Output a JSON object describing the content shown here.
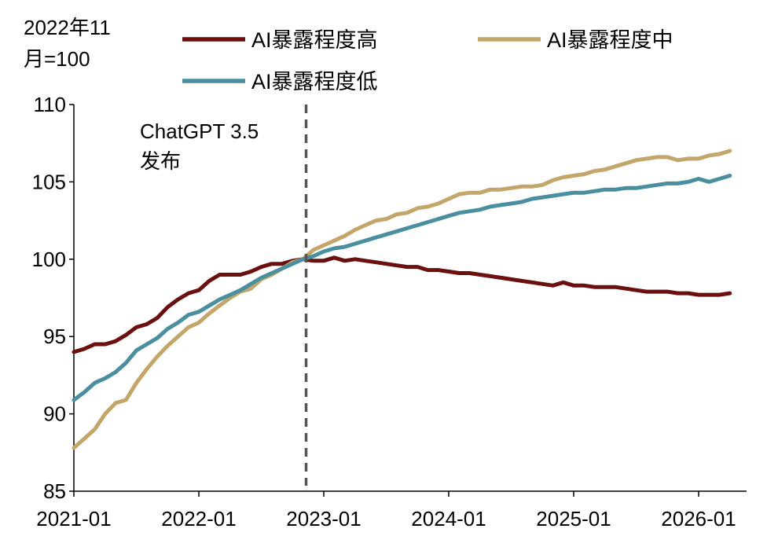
{
  "chart_data": {
    "type": "line",
    "title": "",
    "xlabel": "",
    "ylabel": "",
    "unit_label_line1": "2022年11",
    "unit_label_line2": "月=100",
    "ylim": [
      85,
      110
    ],
    "yticks": [
      85,
      90,
      95,
      100,
      105,
      110
    ],
    "xlim": [
      "2021-01",
      "2026-04"
    ],
    "xticks": [
      "2021-01",
      "2022-01",
      "2023-01",
      "2024-01",
      "2025-01",
      "2026-01"
    ],
    "grid": false,
    "legend_position": "top",
    "annotation": {
      "line1": "ChatGPT 3.5",
      "line2": "发布",
      "x": "2022-11",
      "style": "dashed"
    },
    "series": [
      {
        "name": "AI暴露程度高",
        "color": "#6b0f0f",
        "x": [
          "2021-01",
          "2021-02",
          "2021-03",
          "2021-04",
          "2021-05",
          "2021-06",
          "2021-07",
          "2021-08",
          "2021-09",
          "2021-10",
          "2021-11",
          "2021-12",
          "2022-01",
          "2022-02",
          "2022-03",
          "2022-04",
          "2022-05",
          "2022-06",
          "2022-07",
          "2022-08",
          "2022-09",
          "2022-10",
          "2022-11",
          "2022-12",
          "2023-01",
          "2023-02",
          "2023-03",
          "2023-04",
          "2023-05",
          "2023-06",
          "2023-07",
          "2023-08",
          "2023-09",
          "2023-10",
          "2023-11",
          "2023-12",
          "2024-01",
          "2024-02",
          "2024-03",
          "2024-04",
          "2024-05",
          "2024-06",
          "2024-07",
          "2024-08",
          "2024-09",
          "2024-10",
          "2024-11",
          "2024-12",
          "2025-01",
          "2025-02",
          "2025-03",
          "2025-04",
          "2025-05",
          "2025-06",
          "2025-07",
          "2025-08",
          "2025-09",
          "2025-10",
          "2025-11",
          "2025-12",
          "2026-01",
          "2026-02",
          "2026-03",
          "2026-04"
        ],
        "values": [
          94.0,
          94.2,
          94.5,
          94.5,
          94.7,
          95.1,
          95.6,
          95.8,
          96.2,
          96.9,
          97.4,
          97.8,
          98.0,
          98.6,
          99.0,
          99.0,
          99.0,
          99.2,
          99.5,
          99.7,
          99.7,
          99.9,
          100.0,
          99.9,
          99.9,
          100.1,
          99.9,
          100.0,
          99.9,
          99.8,
          99.7,
          99.6,
          99.5,
          99.5,
          99.3,
          99.3,
          99.2,
          99.1,
          99.1,
          99.0,
          98.9,
          98.8,
          98.7,
          98.6,
          98.5,
          98.4,
          98.3,
          98.5,
          98.3,
          98.3,
          98.2,
          98.2,
          98.2,
          98.1,
          98.0,
          97.9,
          97.9,
          97.9,
          97.8,
          97.8,
          97.7,
          97.7,
          97.7,
          97.8
        ]
      },
      {
        "name": "AI暴露程度中",
        "color": "#c4a56a",
        "x": [
          "2021-01",
          "2021-02",
          "2021-03",
          "2021-04",
          "2021-05",
          "2021-06",
          "2021-07",
          "2021-08",
          "2021-09",
          "2021-10",
          "2021-11",
          "2021-12",
          "2022-01",
          "2022-02",
          "2022-03",
          "2022-04",
          "2022-05",
          "2022-06",
          "2022-07",
          "2022-08",
          "2022-09",
          "2022-10",
          "2022-11",
          "2022-12",
          "2023-01",
          "2023-02",
          "2023-03",
          "2023-04",
          "2023-05",
          "2023-06",
          "2023-07",
          "2023-08",
          "2023-09",
          "2023-10",
          "2023-11",
          "2023-12",
          "2024-01",
          "2024-02",
          "2024-03",
          "2024-04",
          "2024-05",
          "2024-06",
          "2024-07",
          "2024-08",
          "2024-09",
          "2024-10",
          "2024-11",
          "2024-12",
          "2025-01",
          "2025-02",
          "2025-03",
          "2025-04",
          "2025-05",
          "2025-06",
          "2025-07",
          "2025-08",
          "2025-09",
          "2025-10",
          "2025-11",
          "2025-12",
          "2026-01",
          "2026-02",
          "2026-03",
          "2026-04"
        ],
        "values": [
          87.8,
          88.4,
          89.0,
          90.0,
          90.7,
          90.9,
          92.0,
          92.9,
          93.7,
          94.4,
          95.0,
          95.6,
          95.9,
          96.5,
          97.0,
          97.5,
          97.9,
          98.1,
          98.7,
          99.0,
          99.4,
          99.8,
          100.0,
          100.6,
          100.9,
          101.2,
          101.5,
          101.9,
          102.2,
          102.5,
          102.6,
          102.9,
          103.0,
          103.3,
          103.4,
          103.6,
          103.9,
          104.2,
          104.3,
          104.3,
          104.5,
          104.5,
          104.6,
          104.7,
          104.7,
          104.8,
          105.1,
          105.3,
          105.4,
          105.5,
          105.7,
          105.8,
          106.0,
          106.2,
          106.4,
          106.5,
          106.6,
          106.6,
          106.4,
          106.5,
          106.5,
          106.7,
          106.8,
          107.0
        ]
      },
      {
        "name": "AI暴露程度低",
        "color": "#4a8f9f",
        "x": [
          "2021-01",
          "2021-02",
          "2021-03",
          "2021-04",
          "2021-05",
          "2021-06",
          "2021-07",
          "2021-08",
          "2021-09",
          "2021-10",
          "2021-11",
          "2021-12",
          "2022-01",
          "2022-02",
          "2022-03",
          "2022-04",
          "2022-05",
          "2022-06",
          "2022-07",
          "2022-08",
          "2022-09",
          "2022-10",
          "2022-11",
          "2022-12",
          "2023-01",
          "2023-02",
          "2023-03",
          "2023-04",
          "2023-05",
          "2023-06",
          "2023-07",
          "2023-08",
          "2023-09",
          "2023-10",
          "2023-11",
          "2023-12",
          "2024-01",
          "2024-02",
          "2024-03",
          "2024-04",
          "2024-05",
          "2024-06",
          "2024-07",
          "2024-08",
          "2024-09",
          "2024-10",
          "2024-11",
          "2024-12",
          "2025-01",
          "2025-02",
          "2025-03",
          "2025-04",
          "2025-05",
          "2025-06",
          "2025-07",
          "2025-08",
          "2025-09",
          "2025-10",
          "2025-11",
          "2025-12",
          "2026-01",
          "2026-02",
          "2026-03",
          "2026-04"
        ],
        "values": [
          90.9,
          91.4,
          92.0,
          92.3,
          92.7,
          93.3,
          94.1,
          94.5,
          94.9,
          95.5,
          95.9,
          96.4,
          96.6,
          97.0,
          97.4,
          97.7,
          98.0,
          98.4,
          98.8,
          99.1,
          99.4,
          99.7,
          100.0,
          100.2,
          100.5,
          100.7,
          100.8,
          101.0,
          101.2,
          101.4,
          101.6,
          101.8,
          102.0,
          102.2,
          102.4,
          102.6,
          102.8,
          103.0,
          103.1,
          103.2,
          103.4,
          103.5,
          103.6,
          103.7,
          103.9,
          104.0,
          104.1,
          104.2,
          104.3,
          104.3,
          104.4,
          104.5,
          104.5,
          104.6,
          104.6,
          104.7,
          104.8,
          104.9,
          104.9,
          105.0,
          105.2,
          105.0,
          105.2,
          105.4
        ]
      }
    ]
  }
}
